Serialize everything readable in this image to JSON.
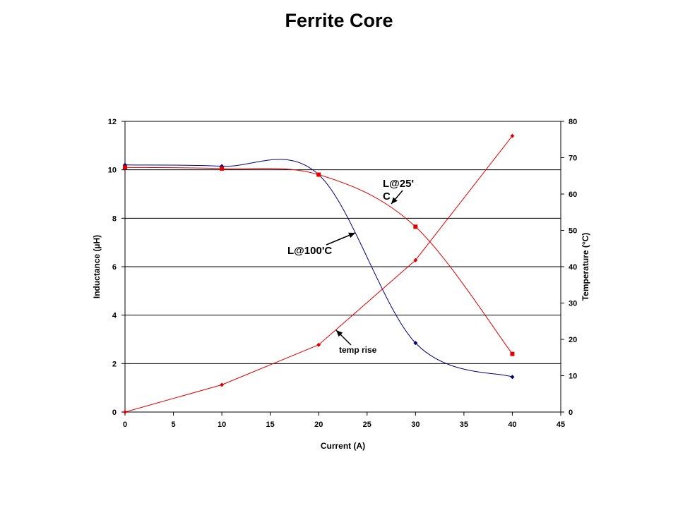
{
  "title": "Ferrite Core",
  "chart_data": {
    "type": "line",
    "title": "Ferrite Core",
    "xlabel": "Current (A)",
    "ylabel": "Inductance (µH)",
    "y2label": "Temperature (°C)",
    "xlim": [
      0,
      45
    ],
    "ylim": [
      0,
      12
    ],
    "y2lim": [
      0,
      80
    ],
    "x_ticks": [
      0,
      5,
      10,
      15,
      20,
      25,
      30,
      35,
      40,
      45
    ],
    "y_ticks": [
      0,
      2,
      4,
      6,
      8,
      10,
      12
    ],
    "y2_ticks": [
      0,
      10,
      20,
      30,
      40,
      50,
      60,
      70,
      80
    ],
    "grid": "horizontal",
    "legend": "none",
    "series": [
      {
        "axis": "left",
        "color": "#00007f",
        "marker": "diamond",
        "smooth": true,
        "x": [
          0,
          10,
          20,
          30,
          40
        ],
        "y": [
          10.2,
          10.15,
          9.8,
          2.85,
          1.45
        ]
      },
      {
        "axis": "left",
        "color": "#e00000",
        "marker": "square",
        "smooth": true,
        "x": [
          0,
          10,
          20,
          30,
          40
        ],
        "y": [
          10.1,
          10.05,
          9.8,
          7.65,
          2.4
        ]
      },
      {
        "axis": "right",
        "color": "#e00000",
        "marker": "diamond",
        "smooth": false,
        "x": [
          0,
          10,
          20,
          30,
          40
        ],
        "y": [
          0,
          7.5,
          18.5,
          41.8,
          76
        ]
      }
    ],
    "annotations": [
      {
        "lines": [
          "L@25'",
          "C"
        ],
        "style": "big"
      },
      {
        "lines": [
          "L@100'C"
        ],
        "style": "big"
      },
      {
        "lines": [
          "temp rise"
        ],
        "style": "small"
      }
    ]
  }
}
